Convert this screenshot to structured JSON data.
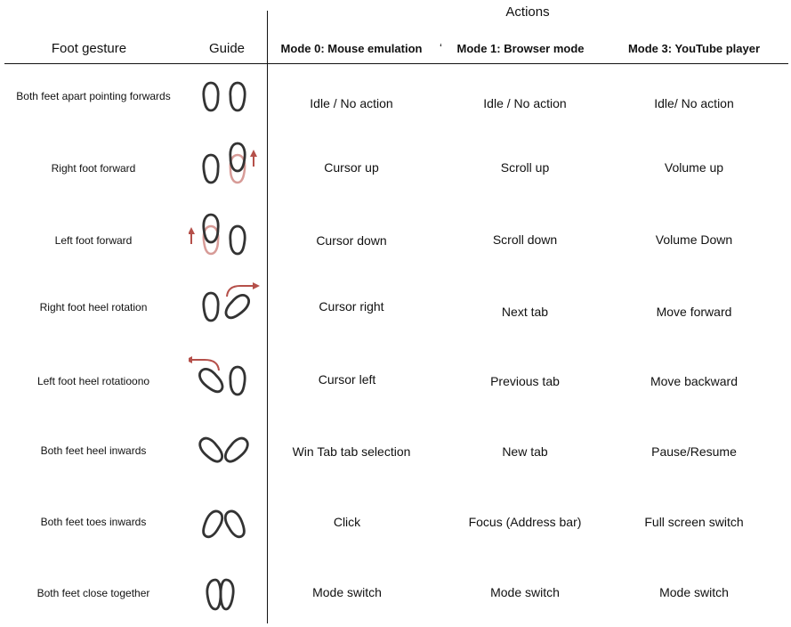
{
  "header": {
    "actions_title": "Actions",
    "col_gesture": "Foot gesture",
    "col_guide": "Guide",
    "mode0": "Mode 0: Mouse emulation",
    "mode1": "Mode 1: Browser mode",
    "mode3": "Mode 3: YouTube player",
    "stray_mark": "‘"
  },
  "rows": [
    {
      "gesture": "Both feet apart pointing forwards",
      "mode0": "Idle / No action",
      "mode1": "Idle / No action",
      "mode3": "Idle/ No action"
    },
    {
      "gesture": "Right foot forward",
      "mode0": "Cursor up",
      "mode1": "Scroll up",
      "mode3": "Volume up"
    },
    {
      "gesture": "Left foot forward",
      "mode0": "Cursor down",
      "mode1": "Scroll down",
      "mode3": "Volume Down"
    },
    {
      "gesture": "Right foot heel rotation",
      "mode0": "Cursor right",
      "mode1": "Next tab",
      "mode3": "Move forward"
    },
    {
      "gesture": "Left foot heel rotatioono",
      "mode0": "Cursor left",
      "mode1": "Previous tab",
      "mode3": "Move backward"
    },
    {
      "gesture": "Both feet heel inwards",
      "mode0": "Win Tab tab selection",
      "mode1": "New tab",
      "mode3": "Pause/Resume"
    },
    {
      "gesture": "Both feet toes inwards",
      "mode0": "Click",
      "mode1": "Focus (Address bar)",
      "mode3": "Full screen switch"
    },
    {
      "gesture": "Both feet close together",
      "mode0": "Mode switch",
      "mode1": "Mode switch",
      "mode3": "Mode switch"
    }
  ],
  "colors": {
    "line": "#111111",
    "foot": "#333333",
    "accent": "#b5504a",
    "accent_light": "#d79b97"
  }
}
